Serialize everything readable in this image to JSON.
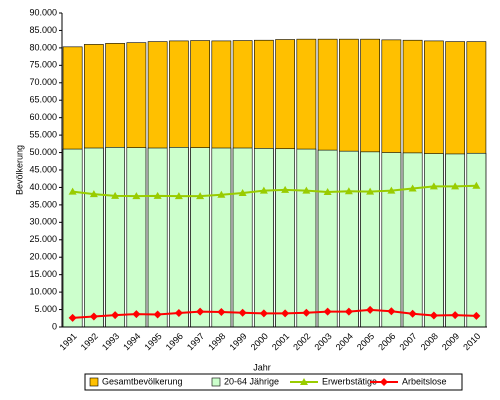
{
  "chart_data": {
    "type": "bar",
    "x_label": "Jahr",
    "y_label": "Bevölkerung",
    "categories": [
      "1991",
      "1992",
      "1993",
      "1994",
      "1995",
      "1996",
      "1997",
      "1998",
      "1999",
      "2000",
      "2001",
      "2002",
      "2003",
      "2004",
      "2005",
      "2006",
      "2007",
      "2008",
      "2009",
      "2010"
    ],
    "series": [
      {
        "name": "Gesamtbevölkerung",
        "type": "bar",
        "color": "#ffc000",
        "values": [
          80300,
          81000,
          81300,
          81500,
          81800,
          82000,
          82100,
          82000,
          82100,
          82200,
          82400,
          82500,
          82500,
          82500,
          82500,
          82300,
          82200,
          82000,
          81800,
          81800
        ]
      },
      {
        "name": "20-64 Jährige",
        "type": "bar",
        "color": "#ccffcc",
        "values": [
          51000,
          51300,
          51500,
          51400,
          51300,
          51500,
          51400,
          51300,
          51300,
          51200,
          51100,
          51000,
          50700,
          50400,
          50200,
          50000,
          49900,
          49700,
          49600,
          49800
        ]
      },
      {
        "name": "Erwerbstätige",
        "type": "line",
        "marker": "triangle",
        "color": "#99cc00",
        "values": [
          38800,
          38100,
          37600,
          37500,
          37600,
          37500,
          37500,
          37900,
          38400,
          39100,
          39300,
          39100,
          38700,
          38900,
          38800,
          39100,
          39700,
          40300,
          40300,
          40500
        ]
      },
      {
        "name": "Arbeitslose",
        "type": "line",
        "marker": "diamond",
        "color": "#ff0000",
        "values": [
          2600,
          3000,
          3400,
          3700,
          3600,
          4000,
          4400,
          4300,
          4100,
          3900,
          3900,
          4100,
          4400,
          4400,
          4900,
          4500,
          3800,
          3300,
          3400,
          3200
        ]
      }
    ],
    "ylim": [
      0,
      90000
    ],
    "yticks": [
      0,
      {
        "value": 5000,
        "label": "5.000"
      },
      {
        "value": 10000,
        "label": "10.000"
      },
      {
        "value": 15000,
        "label": "15.000"
      },
      {
        "value": 20000,
        "label": "20.000"
      },
      {
        "value": 25000,
        "label": "25.000"
      },
      {
        "value": 30000,
        "label": "30.000"
      },
      {
        "value": 35000,
        "label": "35.000"
      },
      {
        "value": 40000,
        "label": "40.000"
      },
      {
        "value": 45000,
        "label": "45.000"
      },
      {
        "value": 50000,
        "label": "50.000"
      },
      {
        "value": 55000,
        "label": "55.000"
      },
      {
        "value": 60000,
        "label": "60.000"
      },
      {
        "value": 65000,
        "label": "65.000"
      },
      {
        "value": 70000,
        "label": "70.000"
      },
      {
        "value": 75000,
        "label": "75.000"
      },
      {
        "value": 80000,
        "label": "80.000"
      },
      {
        "value": 85000,
        "label": "85.000"
      },
      {
        "value": 90000,
        "label": "90.000"
      }
    ],
    "legend": "bottom"
  }
}
